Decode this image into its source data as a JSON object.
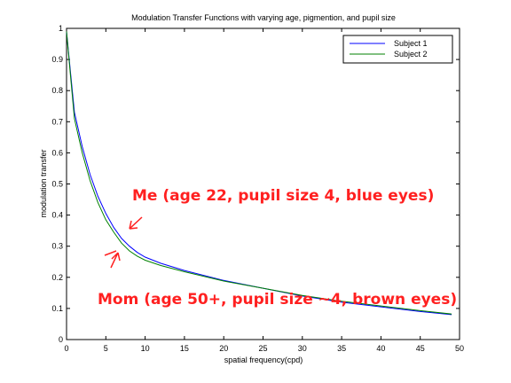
{
  "chart_data": {
    "type": "line",
    "title": "Modulation Transfer Functions with varying age, pigmention, and pupil size",
    "xlabel": "spatial frequency(cpd)",
    "ylabel": "modulation transfer",
    "xlim": [
      0,
      50
    ],
    "ylim": [
      0,
      1
    ],
    "xticks": [
      0,
      5,
      10,
      15,
      20,
      25,
      30,
      35,
      40,
      45,
      50
    ],
    "yticks": [
      0,
      0.1,
      0.2,
      0.3,
      0.4,
      0.5,
      0.6,
      0.7,
      0.8,
      0.9,
      1
    ],
    "grid": false,
    "legend_position": "top-right",
    "series": [
      {
        "name": "Subject 1",
        "color": "#0000ff",
        "x": [
          0,
          0.5,
          1,
          2,
          3,
          4,
          5,
          6,
          7,
          8,
          9,
          10,
          12,
          15,
          20,
          25,
          30,
          35,
          40,
          45,
          49
        ],
        "y": [
          0.99,
          0.86,
          0.73,
          0.62,
          0.53,
          0.46,
          0.405,
          0.36,
          0.325,
          0.3,
          0.28,
          0.265,
          0.245,
          0.222,
          0.19,
          0.165,
          0.14,
          0.12,
          0.105,
          0.09,
          0.08
        ]
      },
      {
        "name": "Subject 2",
        "color": "#008000",
        "x": [
          0,
          0.5,
          1,
          2,
          3,
          4,
          5,
          6,
          7,
          8,
          9,
          10,
          12,
          15,
          20,
          25,
          30,
          35,
          40,
          45,
          49
        ],
        "y": [
          0.99,
          0.85,
          0.71,
          0.6,
          0.51,
          0.44,
          0.385,
          0.345,
          0.31,
          0.285,
          0.268,
          0.255,
          0.238,
          0.218,
          0.188,
          0.165,
          0.142,
          0.123,
          0.108,
          0.093,
          0.082
        ]
      }
    ],
    "annotations": [
      {
        "text": "Me (age 22, pupil size 4, blue eyes)",
        "target_series": "Subject 1"
      },
      {
        "text": "Mom (age 50+, pupil size ~4, brown eyes)",
        "target_series": "Subject 2"
      }
    ]
  }
}
